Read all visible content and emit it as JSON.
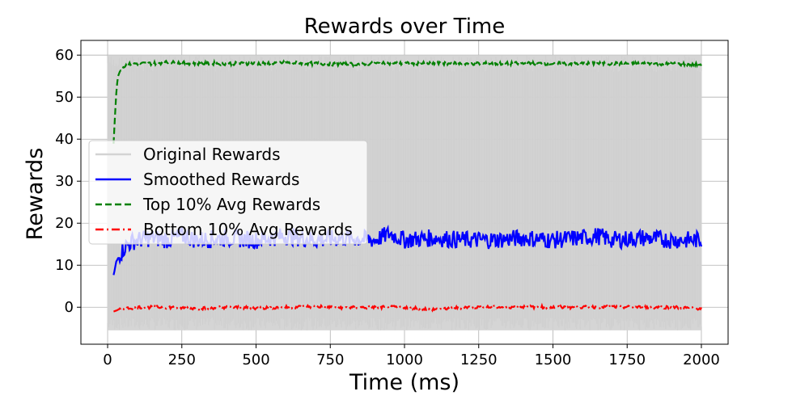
{
  "chart_data": {
    "type": "line",
    "title": "Rewards over Time",
    "xlabel": "Time (ms)",
    "ylabel": "Rewards",
    "xlim": [
      -90,
      2090
    ],
    "ylim": [
      -8.8,
      63.5
    ],
    "xticks": [
      0,
      250,
      500,
      750,
      1000,
      1250,
      1500,
      1750,
      2000
    ],
    "yticks": [
      0,
      10,
      20,
      30,
      40,
      50,
      60
    ],
    "grid": true,
    "legend_position": "center-left",
    "series": [
      {
        "name": "Original Rewards",
        "style": "solid",
        "color": "#d3d3d3",
        "x_range": [
          0,
          2000
        ],
        "min": -5.5,
        "max": 60,
        "note_values": "dense oscillation filling approximately -5.5 to 60"
      },
      {
        "name": "Smoothed Rewards",
        "style": "solid",
        "color": "#0000ff",
        "x": [
          20,
          30,
          45,
          60,
          80,
          100,
          150,
          200,
          250,
          300,
          400,
          500,
          600,
          700,
          800,
          900,
          950,
          1000,
          1100,
          1200,
          1300,
          1400,
          1500,
          1600,
          1650,
          1700,
          1800,
          1900,
          2000
        ],
        "y": [
          7.5,
          11,
          13,
          14.5,
          15.5,
          16,
          16.5,
          16,
          17,
          16,
          16.5,
          16,
          17,
          16,
          16.5,
          16,
          17.5,
          16,
          16.5,
          16,
          16,
          16.5,
          16,
          16.5,
          17,
          16,
          16.5,
          16,
          16
        ]
      },
      {
        "name": "Top 10% Avg Rewards",
        "style": "dashed",
        "color": "#008000",
        "x": [
          20,
          25,
          30,
          35,
          40,
          50,
          60,
          80,
          100,
          150,
          200,
          300,
          400,
          500,
          600,
          700,
          800,
          900,
          1000,
          1200,
          1400,
          1600,
          1800,
          2000
        ],
        "y": [
          39,
          46,
          52,
          55,
          56,
          57,
          57.5,
          58,
          58,
          58,
          58.3,
          58,
          58,
          58,
          58.2,
          58,
          57.8,
          58,
          58,
          58,
          58,
          58,
          58,
          57.8
        ]
      },
      {
        "name": "Bottom 10% Avg Rewards",
        "style": "dashdot",
        "color": "#ff0000",
        "x": [
          20,
          40,
          60,
          100,
          200,
          300,
          400,
          500,
          600,
          700,
          800,
          900,
          1000,
          1100,
          1200,
          1300,
          1400,
          1500,
          1600,
          1700,
          1800,
          1900,
          2000
        ],
        "y": [
          -1,
          -0.5,
          -0.3,
          0,
          0,
          -0.3,
          0,
          -0.2,
          0,
          0.2,
          -0.1,
          0,
          0,
          -0.5,
          0,
          0,
          0.1,
          0,
          0,
          0.1,
          0,
          0,
          -0.3
        ]
      }
    ]
  }
}
